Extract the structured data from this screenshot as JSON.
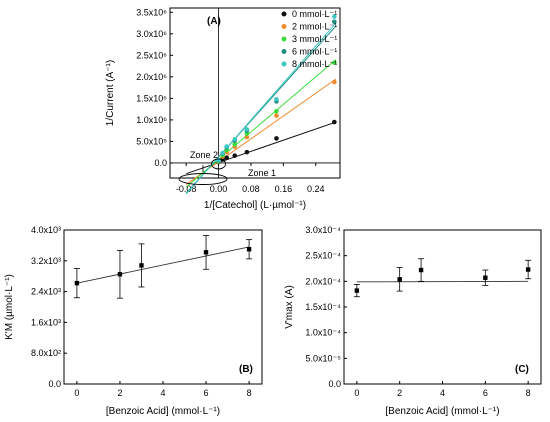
{
  "chart_data": [
    {
      "type": "scatter",
      "panel_label": "(A)",
      "xlabel": "1/[Catechol] (L·µmol⁻¹)",
      "ylabel": "1/Current (A⁻¹)",
      "xlim": [
        -0.12,
        0.3
      ],
      "ylim": [
        -350000,
        3600000
      ],
      "x_ticks": [
        {
          "value": -0.08,
          "label": "-0.08"
        },
        {
          "value": 0.0,
          "label": "0.00"
        },
        {
          "value": 0.08,
          "label": "0.08"
        },
        {
          "value": 0.16,
          "label": "0.16"
        },
        {
          "value": 0.24,
          "label": "0.24"
        }
      ],
      "y_ticks": [
        {
          "value": 0,
          "label": "0.0"
        },
        {
          "value": 500000,
          "label": "5.0x10⁵"
        },
        {
          "value": 1000000,
          "label": "1.0x10⁶"
        },
        {
          "value": 1500000,
          "label": "1.5x10⁶"
        },
        {
          "value": 2000000,
          "label": "2.0x10⁶"
        },
        {
          "value": 2500000,
          "label": "2.5x10⁶"
        },
        {
          "value": 3000000,
          "label": "3.0x10⁶"
        },
        {
          "value": 3500000,
          "label": "3.5x10⁶"
        }
      ],
      "legend_position": "top-right",
      "grid": false,
      "annotations": [
        {
          "text": "Zone 2",
          "x": -0.08,
          "y": 0
        },
        {
          "text": "Zone 1",
          "x": 0.0,
          "y": 0
        }
      ],
      "series": [
        {
          "name": "0 mmol·L⁻¹",
          "color": "#111111",
          "x": [
            0.0,
            0.01,
            0.02,
            0.04,
            0.07,
            0.143,
            0.286
          ],
          "y": [
            20000,
            80000,
            120000,
            170000,
            250000,
            570000,
            950000
          ],
          "fit": {
            "x": [
              -0.08,
              0.29
            ],
            "y": [
              -250000,
              950000
            ]
          }
        },
        {
          "name": "2 mmol·L⁻¹",
          "color": "#f28a2e",
          "x": [
            0.0,
            0.01,
            0.02,
            0.04,
            0.07,
            0.143,
            0.286
          ],
          "y": [
            30000,
            150000,
            250000,
            380000,
            600000,
            1100000,
            1880000
          ],
          "fit": {
            "x": [
              -0.08,
              0.29
            ],
            "y": [
              -500000,
              1950000
            ]
          }
        },
        {
          "name": "3 mmol·L⁻¹",
          "color": "#3ddc3d",
          "x": [
            0.0,
            0.01,
            0.02,
            0.04,
            0.07,
            0.143,
            0.286
          ],
          "y": [
            40000,
            180000,
            300000,
            430000,
            680000,
            1200000,
            2330000
          ],
          "fit": {
            "x": [
              -0.08,
              0.29
            ],
            "y": [
              -560000,
              2400000
            ]
          }
        },
        {
          "name": "6 mmol·L⁻¹",
          "color": "#1e8c80",
          "x": [
            0.0,
            0.01,
            0.02,
            0.04,
            0.07,
            0.143,
            0.286
          ],
          "y": [
            50000,
            220000,
            360000,
            520000,
            750000,
            1430000,
            3280000
          ],
          "fit": {
            "x": [
              -0.08,
              0.29
            ],
            "y": [
              -700000,
              3180000
            ]
          }
        },
        {
          "name": "8 mmol·L⁻¹",
          "color": "#3cc9c4",
          "x": [
            0.0,
            0.01,
            0.02,
            0.04,
            0.07,
            0.143,
            0.286
          ],
          "y": [
            60000,
            230000,
            380000,
            550000,
            780000,
            1480000,
            3400000
          ],
          "fit": {
            "x": [
              -0.08,
              0.29
            ],
            "y": [
              -720000,
              3250000
            ]
          }
        }
      ]
    },
    {
      "type": "scatter",
      "panel_label": "(B)",
      "xlabel": "[Benzoic Acid] (mmol·L⁻¹)",
      "ylabel": "K'M (µmol·L⁻¹)",
      "xlim": [
        -0.6,
        8.6
      ],
      "ylim": [
        0,
        4000
      ],
      "x_ticks": [
        {
          "value": 0,
          "label": "0"
        },
        {
          "value": 2,
          "label": "2"
        },
        {
          "value": 4,
          "label": "4"
        },
        {
          "value": 6,
          "label": "6"
        },
        {
          "value": 8,
          "label": "8"
        }
      ],
      "y_ticks": [
        {
          "value": 0,
          "label": "0.0"
        },
        {
          "value": 800,
          "label": "8.0x10²"
        },
        {
          "value": 1600,
          "label": "1.6x10³"
        },
        {
          "value": 2400,
          "label": "2.4x10³"
        },
        {
          "value": 3200,
          "label": "3.2x10³"
        },
        {
          "value": 4000,
          "label": "4.0x10³"
        }
      ],
      "grid": false,
      "series": [
        {
          "color": "#000000",
          "x": [
            0,
            2,
            3,
            6,
            8
          ],
          "y": [
            2620,
            2850,
            3080,
            3420,
            3500
          ],
          "yerr": [
            380,
            620,
            560,
            440,
            250
          ],
          "fit": {
            "x": [
              0,
              8
            ],
            "y": [
              2620,
              3560
            ]
          }
        }
      ]
    },
    {
      "type": "scatter",
      "panel_label": "(C)",
      "xlabel": "[Benzoic Acid] (mmol·L⁻¹)",
      "ylabel": "V'max (A)",
      "xlim": [
        -0.6,
        8.6
      ],
      "ylim": [
        0,
        0.0003
      ],
      "x_ticks": [
        {
          "value": 0,
          "label": "0"
        },
        {
          "value": 2,
          "label": "2"
        },
        {
          "value": 4,
          "label": "4"
        },
        {
          "value": 6,
          "label": "6"
        },
        {
          "value": 8,
          "label": "8"
        }
      ],
      "y_ticks": [
        {
          "value": 0,
          "label": "0.0"
        },
        {
          "value": 5e-05,
          "label": "5.0x10⁻⁵"
        },
        {
          "value": 0.0001,
          "label": "1.0x10⁻⁴"
        },
        {
          "value": 0.00015,
          "label": "1.5x10⁻⁴"
        },
        {
          "value": 0.0002,
          "label": "2.0x10⁻⁴"
        },
        {
          "value": 0.00025,
          "label": "2.5x10⁻⁴"
        },
        {
          "value": 0.0003,
          "label": "3.0x10⁻⁴"
        }
      ],
      "grid": false,
      "series": [
        {
          "color": "#000000",
          "x": [
            0,
            2,
            3,
            6,
            8
          ],
          "y": [
            0.000182,
            0.000204,
            0.000222,
            0.000207,
            0.000223
          ],
          "yerr": [
            1.2e-05,
            2.3e-05,
            2.2e-05,
            1.5e-05,
            1.8e-05
          ],
          "fit": {
            "x": [
              0,
              8
            ],
            "y": [
              0.000199,
              0.0002
            ]
          }
        }
      ]
    }
  ]
}
